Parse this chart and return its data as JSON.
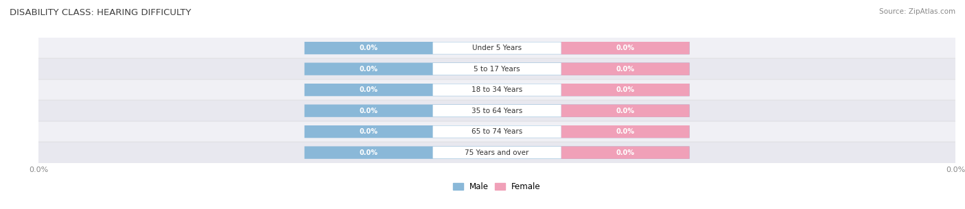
{
  "title": "DISABILITY CLASS: HEARING DIFFICULTY",
  "source_text": "Source: ZipAtlas.com",
  "categories": [
    "Under 5 Years",
    "5 to 17 Years",
    "18 to 34 Years",
    "35 to 64 Years",
    "65 to 74 Years",
    "75 Years and over"
  ],
  "male_values": [
    0.0,
    0.0,
    0.0,
    0.0,
    0.0,
    0.0
  ],
  "female_values": [
    0.0,
    0.0,
    0.0,
    0.0,
    0.0,
    0.0
  ],
  "male_color": "#8ab8d8",
  "female_color": "#f0a0b8",
  "row_bg_odd": "#f0f0f5",
  "row_bg_even": "#e8e8ef",
  "title_color": "#404040",
  "source_color": "#888888",
  "axis_label_color": "#888888",
  "figsize": [
    14.06,
    3.05
  ],
  "dpi": 100
}
